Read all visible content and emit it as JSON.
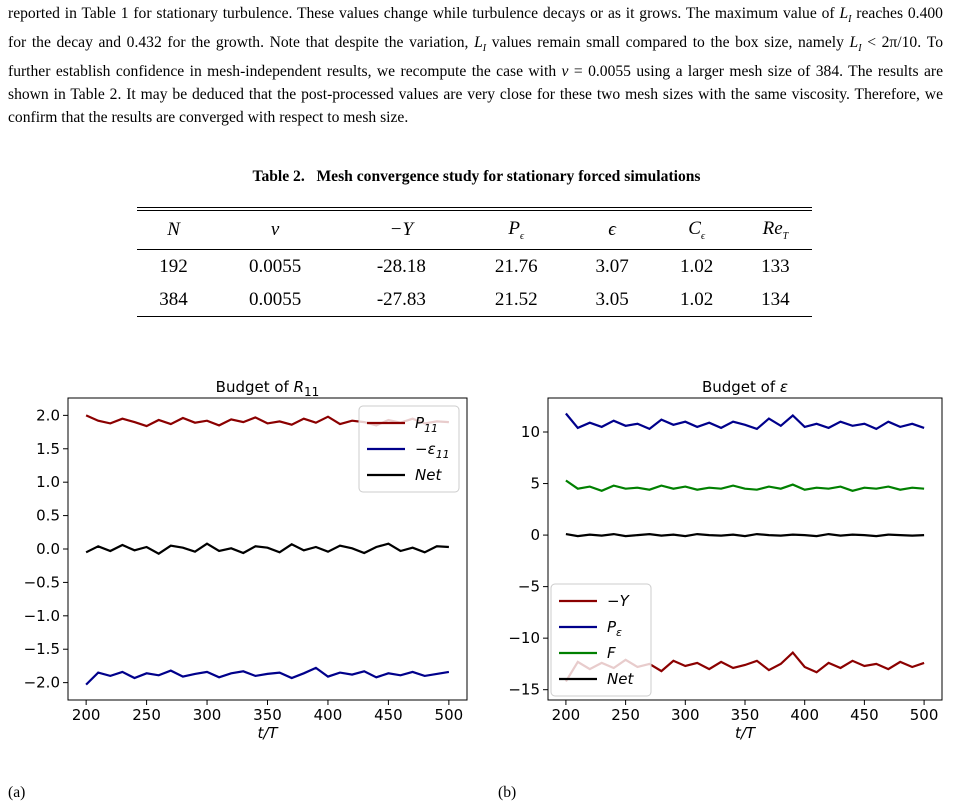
{
  "paragraph": [
    "reported in Table 1 for stationary turbulence. These values change while turbulence decays or as it grows. The maximum value of ",
    "L",
    "I",
    " reaches 0.400 for the decay and 0.432 for the growth. Note that despite the variation, ",
    "L",
    "I",
    " values remain small compared to the box size, namely ",
    "L",
    "I",
    " < 2π/10. To further establish confidence in mesh-independent results, we recompute the case with ",
    "ν",
    " = 0.0055 using a larger mesh size of 384. The results are shown in Table 2. It may be deduced that the post-processed values are very close for these two mesh sizes with the same viscosity. Therefore, we confirm that the results are converged with respect to mesh size."
  ],
  "table": {
    "caption_label": "Table 2.",
    "caption": "Mesh convergence study for stationary forced simulations",
    "header": [
      {
        "text": "N"
      },
      {
        "text": "ν"
      },
      {
        "text": "−Y"
      },
      {
        "text": "P",
        "sub": "ϵ"
      },
      {
        "text": "ϵ"
      },
      {
        "text": "C",
        "sub": "ϵ"
      },
      {
        "text": "Re",
        "sub": "T"
      }
    ],
    "rows": [
      [
        "192",
        "0.0055",
        "-28.18",
        "21.76",
        "3.07",
        "1.02",
        "133"
      ],
      [
        "384",
        "0.0055",
        "-27.83",
        "21.52",
        "3.05",
        "1.02",
        "134"
      ]
    ]
  },
  "figure_labels": [
    "(a)",
    "(b)"
  ],
  "chart_data": [
    {
      "type": "line",
      "title": "Budget of ",
      "title_symbol": "R",
      "title_sub": "11",
      "xlabel": "t/T",
      "legend": "upper right",
      "x": [
        200,
        210,
        220,
        230,
        240,
        250,
        260,
        270,
        280,
        290,
        300,
        310,
        320,
        330,
        340,
        350,
        360,
        370,
        380,
        390,
        400,
        410,
        420,
        430,
        440,
        450,
        460,
        470,
        480,
        490,
        500
      ],
      "xlim": [
        185,
        515
      ],
      "xticks": [
        200,
        250,
        300,
        350,
        400,
        450,
        500
      ],
      "ylim": [
        -2.26,
        2.26
      ],
      "yticks": [
        {
          "value": -2.0,
          "label": "−2.0"
        },
        {
          "value": -1.5,
          "label": "−1.5"
        },
        {
          "value": -1.0,
          "label": "−1.0"
        },
        {
          "value": -0.5,
          "label": "−0.5"
        },
        {
          "value": 0.0,
          "label": "0.0"
        },
        {
          "value": 0.5,
          "label": "0.5"
        },
        {
          "value": 1.0,
          "label": "1.0"
        },
        {
          "value": 1.5,
          "label": "1.5"
        },
        {
          "value": 2.0,
          "label": "2.0"
        }
      ],
      "series": [
        {
          "name": "P",
          "sub": "11",
          "color": "#8b0000",
          "values": [
            2.0,
            1.92,
            1.88,
            1.95,
            1.9,
            1.84,
            1.93,
            1.87,
            1.96,
            1.89,
            1.92,
            1.85,
            1.94,
            1.9,
            1.97,
            1.88,
            1.91,
            1.86,
            1.95,
            1.89,
            1.98,
            1.87,
            1.92,
            1.9,
            1.85,
            1.93,
            1.89,
            1.95,
            1.88,
            1.91,
            1.9
          ]
        },
        {
          "name": "−ε",
          "sub": "11",
          "color": "#00008b",
          "values": [
            -2.03,
            -1.85,
            -1.9,
            -1.84,
            -1.93,
            -1.86,
            -1.89,
            -1.82,
            -1.91,
            -1.87,
            -1.84,
            -1.92,
            -1.86,
            -1.83,
            -1.9,
            -1.87,
            -1.85,
            -1.93,
            -1.86,
            -1.78,
            -1.91,
            -1.85,
            -1.88,
            -1.83,
            -1.92,
            -1.86,
            -1.89,
            -1.84,
            -1.9,
            -1.87,
            -1.84
          ]
        },
        {
          "name": "Net",
          "color": "#000000",
          "values": [
            -0.05,
            0.04,
            -0.03,
            0.06,
            -0.02,
            0.03,
            -0.07,
            0.05,
            0.02,
            -0.04,
            0.08,
            -0.03,
            0.01,
            -0.06,
            0.04,
            0.02,
            -0.05,
            0.07,
            -0.02,
            0.03,
            -0.04,
            0.05,
            0.01,
            -0.06,
            0.03,
            0.08,
            -0.03,
            0.02,
            -0.05,
            0.04,
            0.03
          ]
        }
      ]
    },
    {
      "type": "line",
      "title": "Budget of ",
      "title_symbol": "ε",
      "xlabel": "t/T",
      "legend": "lower left",
      "x": [
        200,
        210,
        220,
        230,
        240,
        250,
        260,
        270,
        280,
        290,
        300,
        310,
        320,
        330,
        340,
        350,
        360,
        370,
        380,
        390,
        400,
        410,
        420,
        430,
        440,
        450,
        460,
        470,
        480,
        490,
        500
      ],
      "xlim": [
        185,
        515
      ],
      "xticks": [
        200,
        250,
        300,
        350,
        400,
        450,
        500
      ],
      "ylim": [
        -16,
        13.3
      ],
      "yticks": [
        {
          "value": -15,
          "label": "−15"
        },
        {
          "value": -10,
          "label": "−10"
        },
        {
          "value": -5,
          "label": "−5"
        },
        0,
        5,
        10
      ],
      "series": [
        {
          "name": "−Y",
          "color": "#8b0000",
          "values": [
            -14.2,
            -12.3,
            -13.0,
            -12.4,
            -12.9,
            -12.1,
            -12.8,
            -12.5,
            -13.2,
            -12.2,
            -12.7,
            -12.4,
            -13.0,
            -12.3,
            -12.9,
            -12.6,
            -12.2,
            -13.1,
            -12.5,
            -11.4,
            -12.8,
            -13.3,
            -12.4,
            -12.9,
            -12.2,
            -12.7,
            -12.5,
            -13.0,
            -12.3,
            -12.8,
            -12.4
          ]
        },
        {
          "name": "P",
          "sub": "ε",
          "color": "#00008b",
          "values": [
            11.8,
            10.4,
            10.9,
            10.5,
            11.1,
            10.6,
            10.8,
            10.3,
            11.2,
            10.7,
            11.0,
            10.5,
            10.9,
            10.4,
            11.0,
            10.7,
            10.3,
            11.3,
            10.6,
            11.6,
            10.5,
            10.8,
            10.4,
            11.0,
            10.6,
            10.8,
            10.3,
            11.0,
            10.5,
            10.8,
            10.4
          ]
        },
        {
          "name": "F",
          "color": "#008000",
          "values": [
            5.3,
            4.5,
            4.7,
            4.3,
            4.8,
            4.5,
            4.6,
            4.4,
            4.8,
            4.5,
            4.7,
            4.4,
            4.6,
            4.5,
            4.8,
            4.5,
            4.4,
            4.7,
            4.5,
            4.9,
            4.4,
            4.6,
            4.5,
            4.7,
            4.3,
            4.6,
            4.5,
            4.7,
            4.4,
            4.6,
            4.5
          ]
        },
        {
          "name": "Net",
          "color": "#000000",
          "values": [
            0.1,
            -0.1,
            0.05,
            -0.05,
            0.1,
            -0.1,
            0.0,
            0.1,
            -0.05,
            0.05,
            -0.1,
            0.1,
            0.0,
            -0.05,
            0.05,
            -0.1,
            0.1,
            0.0,
            -0.05,
            0.05,
            0.0,
            -0.1,
            0.1,
            -0.05,
            0.05,
            0.0,
            -0.1,
            0.05,
            0.0,
            -0.05,
            0.0
          ]
        }
      ]
    }
  ]
}
